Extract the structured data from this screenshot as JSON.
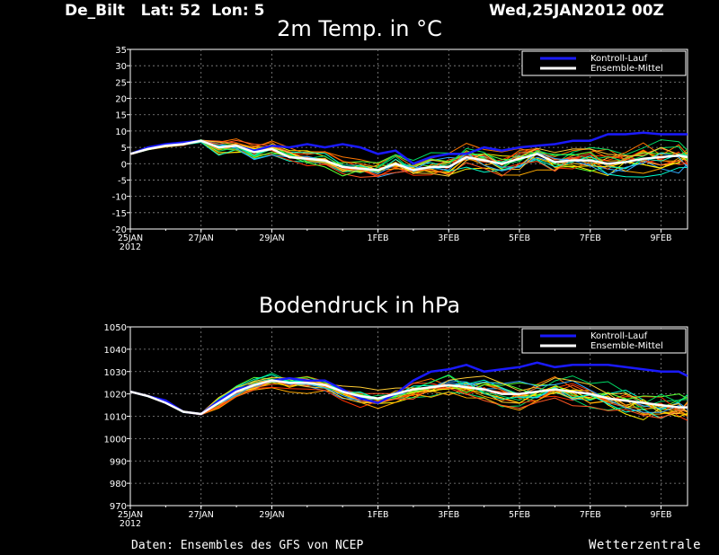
{
  "header": {
    "station": "De_Bilt   Lat: 52  Lon: 5",
    "run": "Wed,25JAN2012 00Z"
  },
  "footer": {
    "credit": "Daten: Ensembles des GFS von NCEP",
    "brand": "Wetterzentrale"
  },
  "colors": {
    "background": "#000000",
    "control": "#1a1aff",
    "mean": "#ffffff",
    "members": [
      "#ff3300",
      "#ff7700",
      "#ffaa00",
      "#ffee00",
      "#55ff33",
      "#00dd66",
      "#00ffcc",
      "#33aaff",
      "#ff5522",
      "#ffcc33"
    ]
  },
  "chart_data": [
    {
      "type": "line",
      "title": "2m Temp. in °C",
      "x_tick_labels": [
        "25JAN\n2012",
        "27JAN",
        "29JAN",
        "1FEB",
        "3FEB",
        "5FEB",
        "7FEB",
        "9FEB"
      ],
      "x_tick_days": [
        0,
        2,
        4,
        7,
        9,
        11,
        13,
        15
      ],
      "xlim_days": [
        0,
        15.75
      ],
      "ylim": [
        -20,
        35
      ],
      "yticks": [
        -20,
        -15,
        -10,
        -5,
        0,
        5,
        10,
        15,
        20,
        25,
        30,
        35
      ],
      "grid": true,
      "legend_position": "top-right",
      "series": [
        {
          "name": "Kontroll-Lauf",
          "role": "control",
          "days": [
            0,
            0.5,
            1,
            1.5,
            2,
            2.5,
            3,
            3.5,
            4,
            4.5,
            5,
            5.5,
            6,
            6.5,
            7,
            7.5,
            8,
            8.5,
            9,
            9.5,
            10,
            10.5,
            11,
            11.5,
            12,
            12.5,
            13,
            13.5,
            14,
            14.5,
            15,
            15.5,
            15.75
          ],
          "values": [
            3,
            5,
            6,
            6.5,
            7,
            5,
            5.5,
            4,
            5.5,
            5,
            6,
            5,
            6,
            5,
            3,
            4,
            0,
            2,
            3,
            3,
            5,
            4,
            5,
            5.5,
            6,
            7,
            7,
            9,
            9,
            9.5,
            9,
            9,
            9
          ]
        },
        {
          "name": "Ensemble-Mittel",
          "role": "mean",
          "days": [
            0,
            0.5,
            1,
            1.5,
            2,
            2.5,
            3,
            3.5,
            4,
            4.5,
            5,
            5.5,
            6,
            6.5,
            7,
            7.5,
            8,
            8.5,
            9,
            9.5,
            10,
            10.5,
            11,
            11.5,
            12,
            12.5,
            13,
            13.5,
            14,
            14.5,
            15,
            15.5,
            15.75
          ],
          "values": [
            3,
            4.5,
            5.5,
            6,
            7,
            5,
            5.5,
            3.5,
            4.5,
            2,
            1.5,
            1,
            -1,
            -1.5,
            -2,
            0,
            -2,
            -1,
            -1,
            2,
            1,
            0,
            1.5,
            3,
            0.5,
            1,
            1,
            0,
            0.5,
            1.5,
            2,
            2.5,
            2
          ]
        }
      ]
    },
    {
      "type": "line",
      "title": "Bodendruck in hPa",
      "x_tick_labels": [
        "25JAN\n2012",
        "27JAN",
        "29JAN",
        "1FEB",
        "3FEB",
        "5FEB",
        "7FEB",
        "9FEB"
      ],
      "x_tick_days": [
        0,
        2,
        4,
        7,
        9,
        11,
        13,
        15
      ],
      "xlim_days": [
        0,
        15.75
      ],
      "ylim": [
        970,
        1050
      ],
      "yticks": [
        970,
        980,
        990,
        1000,
        1010,
        1020,
        1030,
        1040,
        1050
      ],
      "grid": true,
      "legend_position": "top-right",
      "series": [
        {
          "name": "Kontroll-Lauf",
          "role": "control",
          "days": [
            0,
            0.5,
            1,
            1.5,
            2,
            2.5,
            3,
            3.5,
            4,
            4.5,
            5,
            5.5,
            6,
            6.5,
            7,
            7.5,
            8,
            8.5,
            9,
            9.5,
            10,
            10.5,
            11,
            11.5,
            12,
            12.5,
            13,
            13.5,
            14,
            14.5,
            15,
            15.5,
            15.75
          ],
          "values": [
            1021,
            1019,
            1017,
            1012,
            1011,
            1017,
            1022,
            1024,
            1026,
            1027,
            1026,
            1026,
            1022,
            1018,
            1016,
            1020,
            1026,
            1030,
            1031,
            1033,
            1030,
            1031,
            1032,
            1034,
            1032,
            1033,
            1033,
            1033,
            1032,
            1031,
            1030,
            1030,
            1028
          ]
        },
        {
          "name": "Ensemble-Mittel",
          "role": "mean",
          "days": [
            0,
            0.5,
            1,
            1.5,
            2,
            2.5,
            3,
            3.5,
            4,
            4.5,
            5,
            5.5,
            6,
            6.5,
            7,
            7.5,
            8,
            8.5,
            9,
            9.5,
            10,
            10.5,
            11,
            11.5,
            12,
            12.5,
            13,
            13.5,
            14,
            14.5,
            15,
            15.5,
            15.75
          ],
          "values": [
            1021,
            1019,
            1016,
            1012,
            1011,
            1016,
            1021,
            1024,
            1026,
            1025,
            1025,
            1024,
            1021,
            1019,
            1018,
            1020,
            1022,
            1023,
            1024,
            1023,
            1022,
            1020,
            1020,
            1021,
            1022,
            1021,
            1020,
            1018,
            1017,
            1016,
            1015,
            1014,
            1014
          ]
        }
      ]
    }
  ]
}
